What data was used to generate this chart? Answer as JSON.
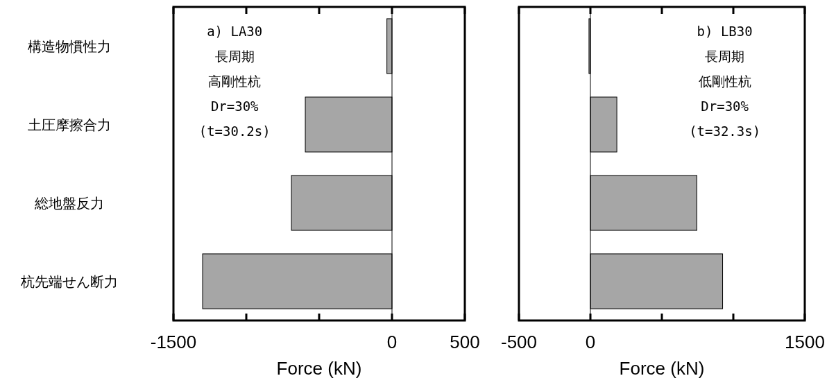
{
  "chart_data": [
    {
      "type": "bar",
      "orientation": "horizontal",
      "categories": [
        "構造物慣性力",
        "土圧摩擦合力",
        "総地盤反力",
        "杭先端せん断力"
      ],
      "values": [
        -35,
        -595,
        -690,
        -1300
      ],
      "color": "#a6a6a6",
      "xlim": [
        -1500,
        500
      ],
      "xticks": [
        -1500,
        {
          "value": -1000,
          "label": null
        },
        {
          "value": -500,
          "label": null
        },
        0,
        500
      ],
      "xlabel": "Force (kN)",
      "ref_lines": [
        {
          "axis": "x",
          "value": 0
        }
      ],
      "annotations": [
        "a) LA30",
        "長周期",
        "高剛性杭",
        "Dr=30%",
        "(t=30.2s)"
      ]
    },
    {
      "type": "bar",
      "orientation": "horizontal",
      "categories": [
        null,
        null,
        null,
        null
      ],
      "values": [
        -10,
        185,
        745,
        925
      ],
      "color": "#a6a6a6",
      "xlim": [
        -500,
        1500
      ],
      "xticks": [
        -500,
        0,
        {
          "value": 500,
          "label": null
        },
        {
          "value": 1000,
          "label": null
        },
        1500
      ],
      "xlabel": "Force (kN)",
      "ref_lines": [
        {
          "axis": "x",
          "value": 0
        }
      ],
      "tick_labels": "x",
      "annotations": [
        "b) LB30",
        "長周期",
        "低剛性杭",
        "Dr=30%",
        "(t=32.3s)"
      ]
    }
  ]
}
